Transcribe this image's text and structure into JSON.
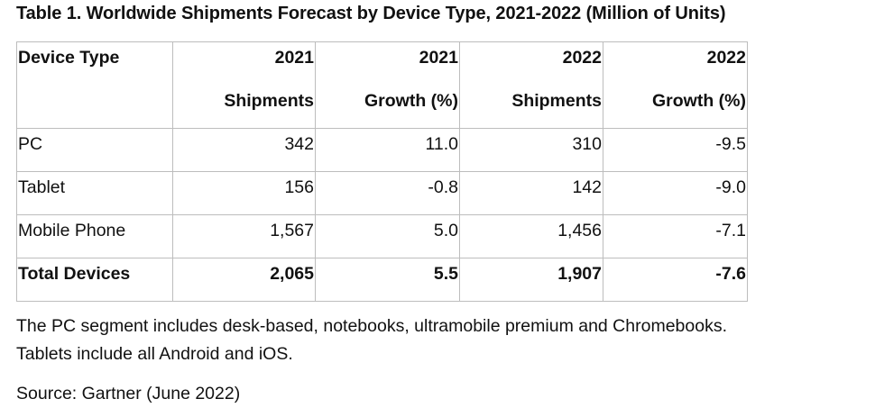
{
  "title": "Table 1. Worldwide Shipments Forecast by Device Type, 2021-2022 (Million of Units)",
  "table": {
    "header_row1": [
      "Device Type",
      "2021",
      "2021",
      "2022",
      "2022"
    ],
    "header_row2": [
      "",
      "Shipments",
      "Growth (%)",
      "Shipments",
      "Growth (%)"
    ],
    "rows": [
      [
        "PC",
        "342",
        "11.0",
        "310",
        "-9.5"
      ],
      [
        "Tablet",
        "156",
        "-0.8",
        "142",
        "-9.0"
      ],
      [
        "Mobile Phone",
        "1,567",
        "5.0",
        "1,456",
        "-7.1"
      ]
    ],
    "total": [
      "Total Devices",
      "2,065",
      "5.5",
      "1,907",
      "-7.6"
    ]
  },
  "notes": {
    "line1": "The PC segment includes desk-based, notebooks, ultramobile premium and Chromebooks.",
    "line2": "Tablets include all Android and iOS."
  },
  "source": "Source: Gartner (June 2022)"
}
